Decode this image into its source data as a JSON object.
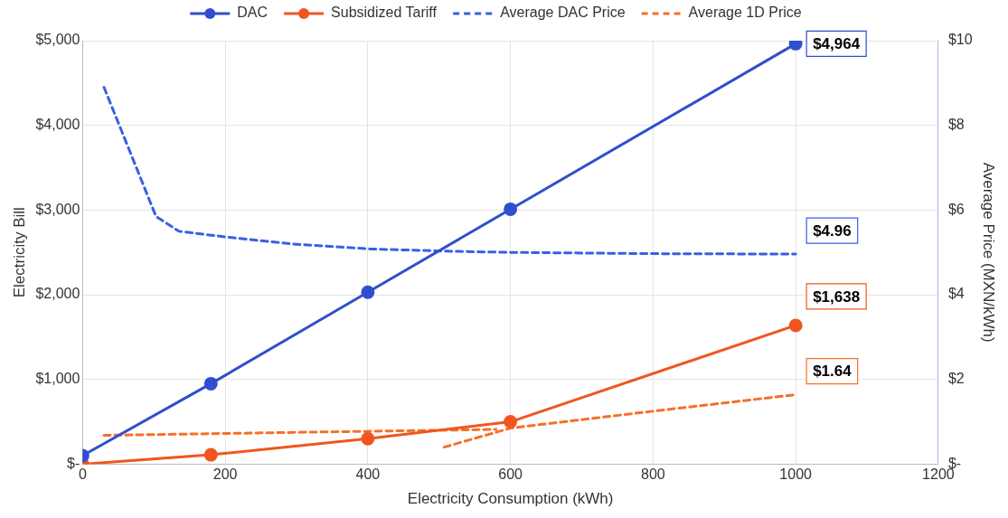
{
  "chart_data": {
    "type": "line",
    "xlabel": "Electricity Consumption (kWh)",
    "ylabel": "Electricity Bill",
    "y2label": "Average Price (MXN/kWh)",
    "xlim": [
      0,
      1200
    ],
    "xticks": [
      0,
      200,
      400,
      600,
      800,
      1000,
      1200
    ],
    "ylim": [
      0,
      5000
    ],
    "yticks": [
      {
        "value": 0,
        "label": "$-"
      },
      {
        "value": 1000,
        "label": "$1,000"
      },
      {
        "value": 2000,
        "label": "$2,000"
      },
      {
        "value": 3000,
        "label": "$3,000"
      },
      {
        "value": 4000,
        "label": "$4,000"
      },
      {
        "value": 5000,
        "label": "$5,000"
      }
    ],
    "y2lim": [
      0,
      10
    ],
    "y2ticks": [
      {
        "value": 0,
        "label": "$-"
      },
      {
        "value": 2,
        "label": "$2"
      },
      {
        "value": 4,
        "label": "$4"
      },
      {
        "value": 6,
        "label": "$6"
      },
      {
        "value": 8,
        "label": "$8"
      },
      {
        "value": 10,
        "label": "$10"
      }
    ],
    "grid": true,
    "legend": "top",
    "series": [
      {
        "name": "DAC",
        "color": "#2f4fcf",
        "marker": "circle",
        "line_style": "solid",
        "x": [
          0,
          180,
          400,
          600,
          1000
        ],
        "values": [
          100,
          950,
          2030,
          3010,
          4964
        ],
        "value_labels": [
          null,
          null,
          null,
          null,
          "$4,964"
        ]
      },
      {
        "name": "Subsidized Tariff",
        "color": "#f0561e",
        "marker": "circle",
        "line_style": "solid",
        "x": [
          0,
          180,
          400,
          600,
          1000
        ],
        "values": [
          0,
          110,
          300,
          500,
          1638
        ],
        "value_labels": [
          null,
          null,
          null,
          null,
          "$1,638"
        ]
      },
      {
        "name": "Average DAC Price",
        "color": "#3a5fe0",
        "marker": "none",
        "line_style": "dashed",
        "axis": "y2",
        "x": [
          30,
          103,
          135,
          203,
          293,
          404,
          510,
          600,
          800,
          1000
        ],
        "values": [
          8.9,
          5.85,
          5.5,
          5.36,
          5.2,
          5.08,
          5.03,
          5.0,
          4.97,
          4.96
        ],
        "value_labels": [
          null,
          null,
          null,
          null,
          null,
          null,
          null,
          null,
          null,
          "$4.96"
        ]
      },
      {
        "name": "Average 1D Price",
        "color": "#f5702a",
        "marker": "none",
        "line_style": "dashed",
        "axis": "y2",
        "x": [
          30,
          300,
          580,
          null,
          507,
          600,
          800,
          1000
        ],
        "values": [
          0.68,
          0.75,
          0.82,
          null,
          0.4,
          0.85,
          1.25,
          1.64
        ],
        "value_labels": [
          null,
          null,
          null,
          null,
          null,
          null,
          null,
          "$1.64"
        ]
      }
    ]
  }
}
